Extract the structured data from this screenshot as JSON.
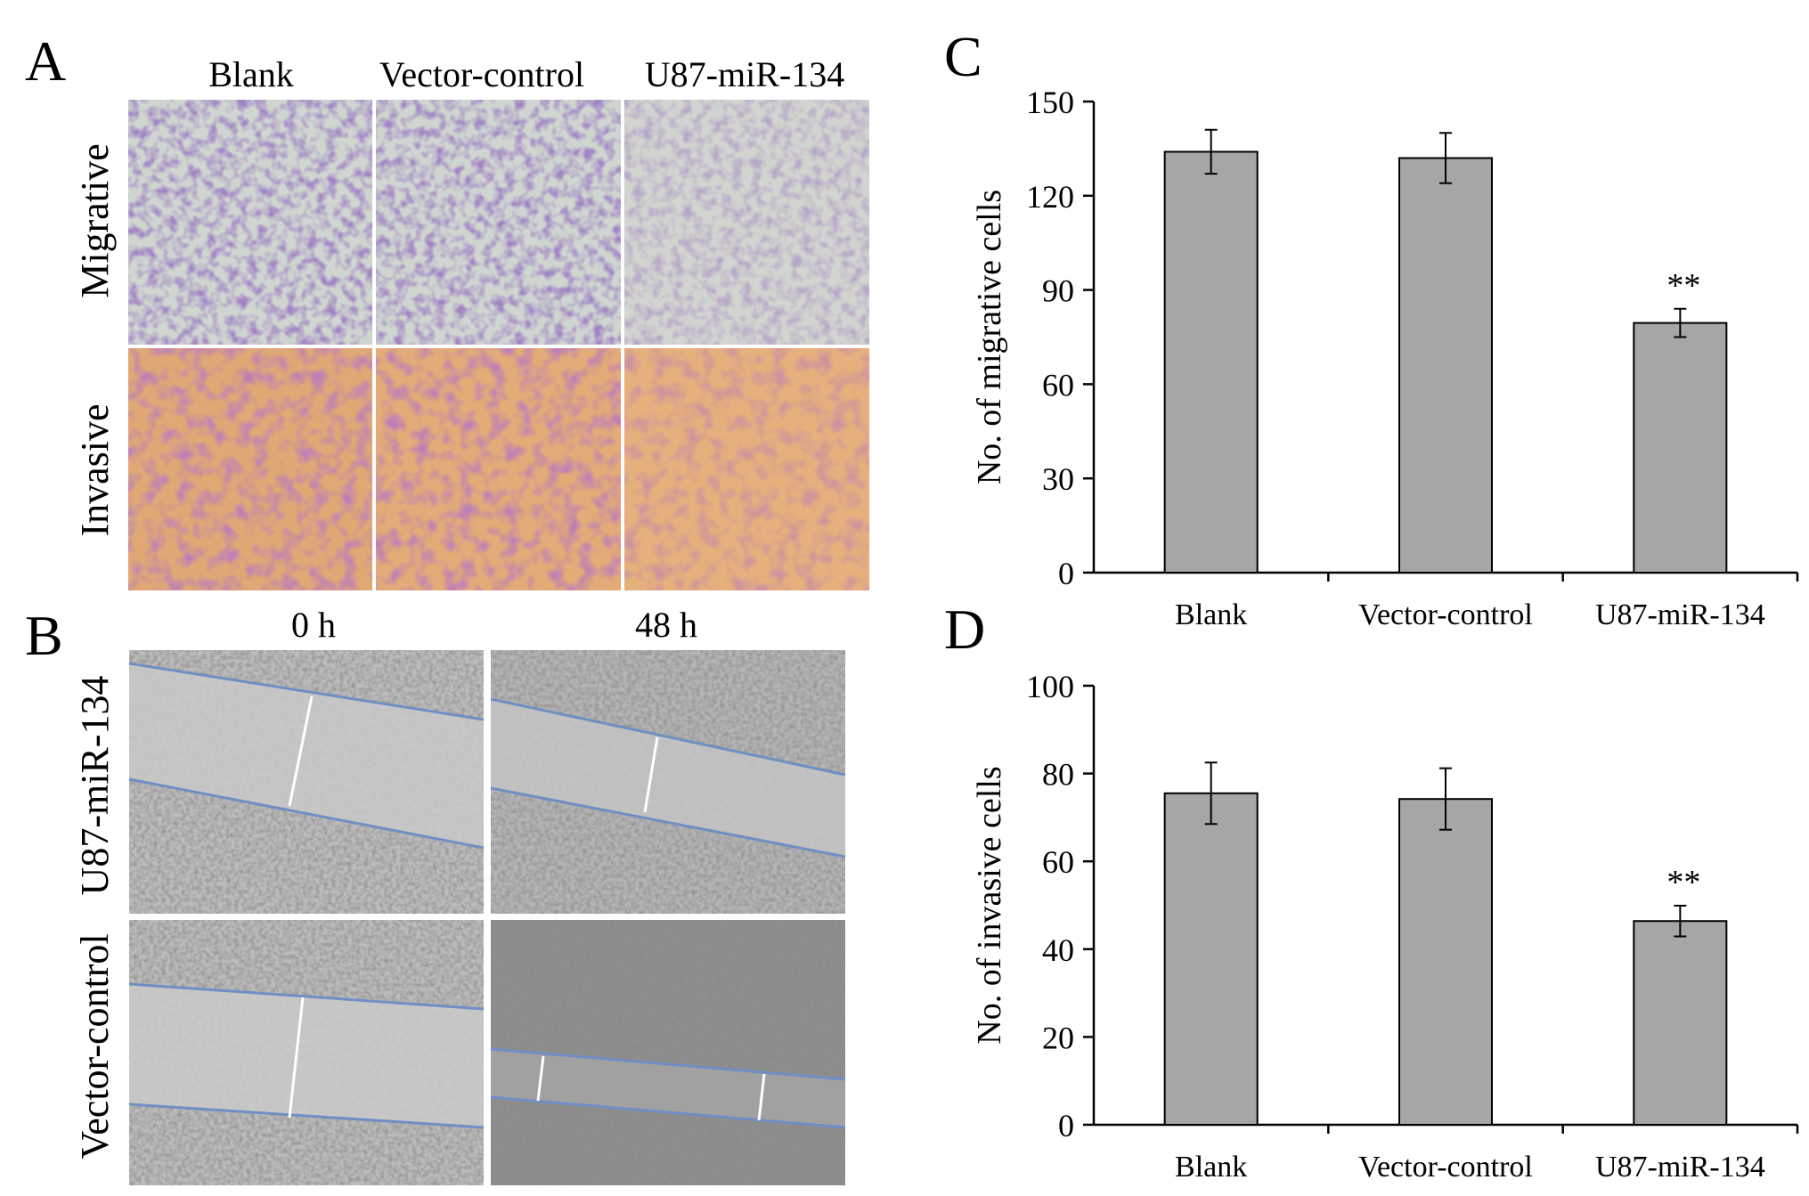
{
  "panels": {
    "A": {
      "letter": "A",
      "columns": [
        "Blank",
        "Vector-control",
        "U87-miR-134"
      ],
      "rows": [
        "Migrative",
        "Invasive"
      ]
    },
    "B": {
      "letter": "B",
      "columns": [
        "0 h",
        "48 h"
      ],
      "rows": [
        "U87-miR-134",
        "Vector-control"
      ]
    },
    "C": {
      "letter": "C"
    },
    "D": {
      "letter": "D"
    }
  },
  "colors": {
    "bar_fill": "#a6a6a6",
    "migrative_bg": "#cfd6d0",
    "migrative_cell": "#5b3a8e",
    "invasive_bg": "#e0a874",
    "invasive_cell": "#8a3a7a",
    "scratch_bg": "#bfbfbf",
    "scratch_line": "#6f8fc4"
  },
  "chart_data": [
    {
      "panel": "C",
      "type": "bar",
      "categories": [
        "Blank",
        "Vector-control",
        "U87-miR-134"
      ],
      "values": [
        134,
        132,
        79.5
      ],
      "errors": [
        7,
        8,
        4.5
      ],
      "annotations": [
        "",
        "",
        "**"
      ],
      "ylabel": "No. of migrative cells",
      "ylim": [
        0,
        150
      ],
      "yticks": [
        0,
        30,
        60,
        90,
        120,
        150
      ],
      "grid": false,
      "legend": "none"
    },
    {
      "panel": "D",
      "type": "bar",
      "categories": [
        "Blank",
        "Vector-control",
        "U87-miR-134"
      ],
      "values": [
        75.5,
        74.2,
        46.4
      ],
      "errors": [
        7,
        7,
        3.5
      ],
      "annotations": [
        "",
        "",
        "**"
      ],
      "ylabel": "No. of invasive cells",
      "ylim": [
        0,
        100
      ],
      "yticks": [
        0,
        20,
        40,
        60,
        80,
        100
      ],
      "grid": false,
      "legend": "none"
    }
  ]
}
